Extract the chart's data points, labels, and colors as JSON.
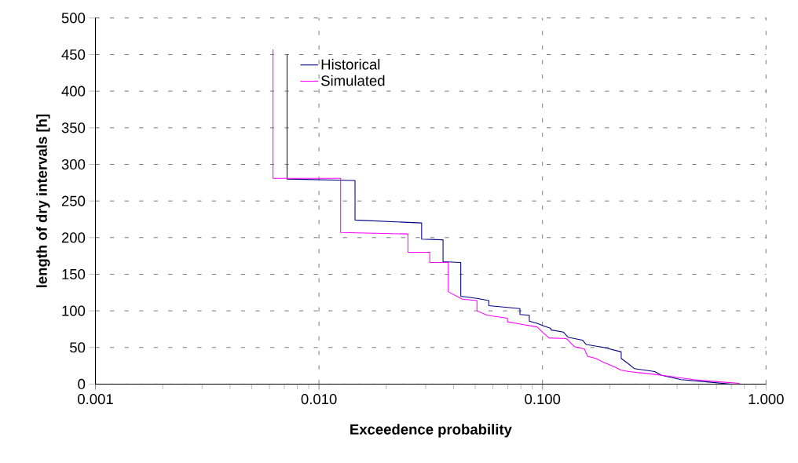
{
  "chart_data": {
    "type": "line",
    "xlabel": "Exceedence probability",
    "ylabel": "length of dry intervals [h]",
    "log": "x",
    "grid": true,
    "legend": "top left",
    "marker": "none",
    "line_style": "solid",
    "xlim": [
      0.001,
      1
    ],
    "ylim": [
      0,
      500
    ],
    "xticks": [
      {
        "value": 0.001,
        "label": "0.001"
      },
      {
        "value": 0.01,
        "label": "0.010"
      },
      {
        "value": 0.1,
        "label": "0.100"
      },
      {
        "value": 1,
        "label": "1.000"
      }
    ],
    "yticks": [
      0,
      50,
      100,
      150,
      200,
      250,
      300,
      350,
      400,
      450,
      500
    ],
    "series": [
      {
        "name": "Historical",
        "color": "#000080",
        "x": [
          0.0072,
          0.0072,
          0.0145,
          0.0145,
          0.0288,
          0.0288,
          0.0359,
          0.0359,
          0.0431,
          0.0431,
          0.0509,
          0.0575,
          0.0575,
          0.0793,
          0.0793,
          0.0873,
          0.0873,
          0.0946,
          0.1,
          0.109,
          0.109,
          0.124,
          0.13,
          0.151,
          0.157,
          0.188,
          0.225,
          0.225,
          0.244,
          0.258,
          0.318,
          0.341,
          0.417,
          0.543,
          0.7
        ],
        "values": [
          450,
          280,
          278,
          224,
          220,
          198,
          197,
          167,
          166,
          120,
          117,
          114,
          107,
          103,
          95,
          94,
          86,
          83,
          80,
          76,
          74,
          71,
          64,
          60,
          54,
          50,
          44,
          35,
          27,
          21,
          17,
          12,
          6,
          3,
          0
        ]
      },
      {
        "name": "Simulated",
        "color": "#ff00ff",
        "x": [
          0.00623,
          0.00623,
          0.0125,
          0.0125,
          0.025,
          0.025,
          0.0313,
          0.0313,
          0.0379,
          0.0379,
          0.0438,
          0.0509,
          0.0509,
          0.0566,
          0.0697,
          0.0697,
          0.0762,
          0.0824,
          0.0946,
          0.1007,
          0.107,
          0.128,
          0.139,
          0.154,
          0.159,
          0.173,
          0.187,
          0.208,
          0.225,
          0.244,
          0.303,
          0.364,
          0.474,
          0.622,
          0.762
        ],
        "values": [
          457,
          281,
          281,
          207,
          205,
          180,
          180,
          166,
          166,
          126,
          116,
          114,
          100,
          94,
          90,
          85,
          83,
          81,
          78,
          70,
          63,
          62,
          51,
          48,
          38,
          35,
          30,
          24,
          19,
          17,
          14,
          11,
          6,
          3,
          1
        ]
      }
    ]
  }
}
